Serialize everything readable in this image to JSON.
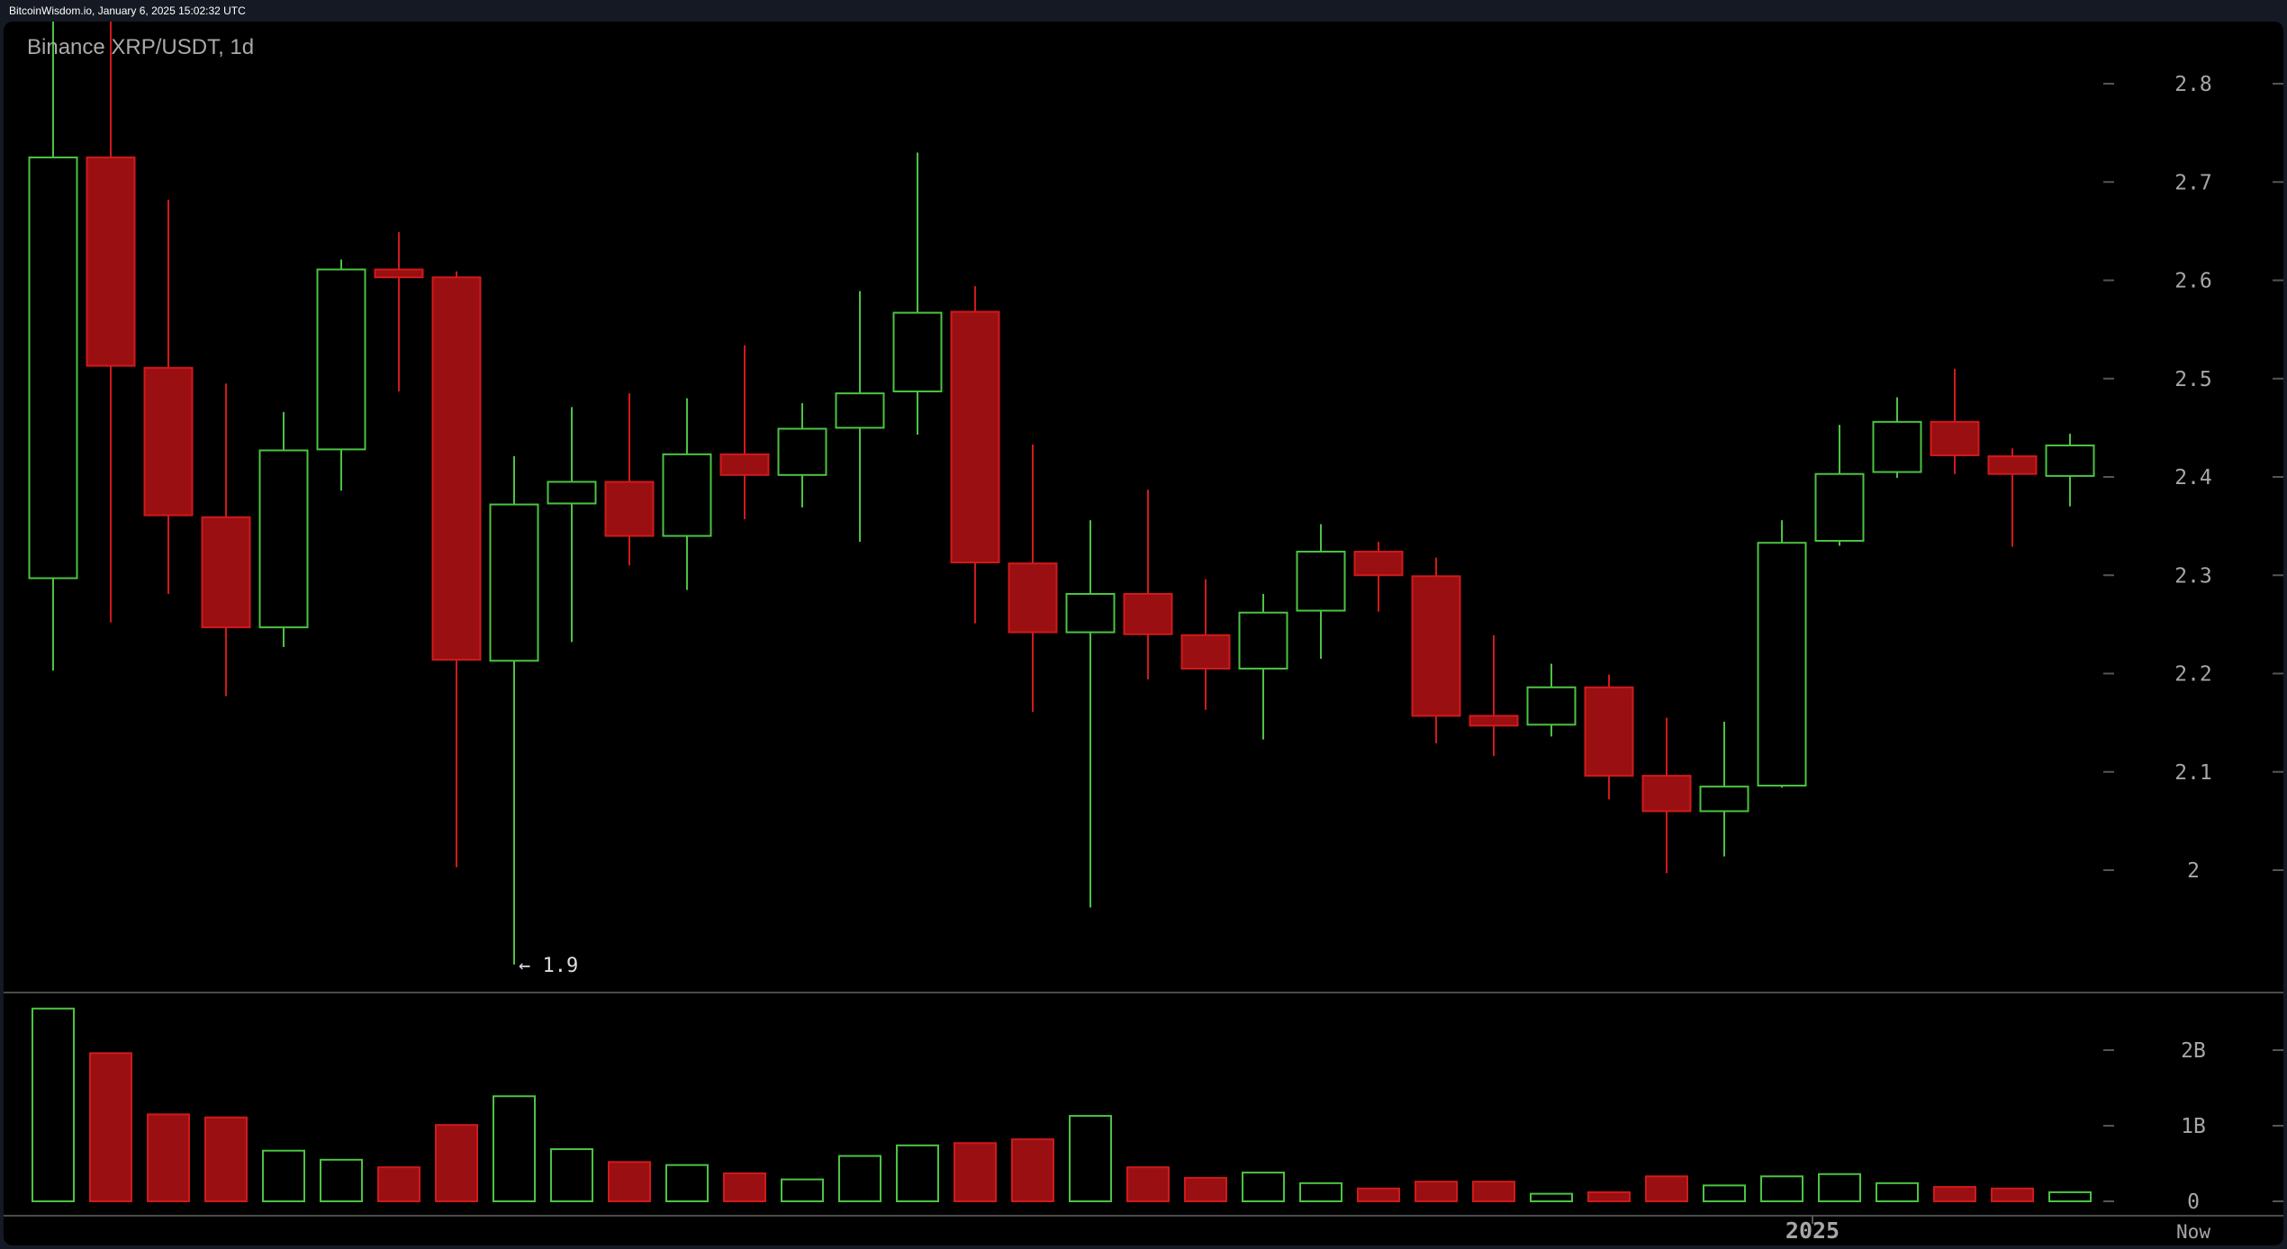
{
  "header": {
    "timestamp": "BitcoinWisdom.io, January 6, 2025 15:02:32 UTC"
  },
  "chart": {
    "title": "Binance XRP/USDT, 1d",
    "low_marker": "← 1.9",
    "colors": {
      "up": "#4cc342",
      "down_fill": "#9a0f12",
      "down_stroke": "#d01a1a",
      "axis_text": "#a6a6a6",
      "grid_line": "#4a4a4a",
      "background": "#000000",
      "frame": "#151923"
    }
  },
  "chart_data": {
    "type": "candlestick",
    "title": "Binance XRP/USDT, 1d",
    "xlabel": "",
    "ylabel": "",
    "price_ticks": [
      "2",
      "2.1",
      "2.2",
      "2.3",
      "2.4",
      "2.5",
      "2.6",
      "2.7",
      "2.8"
    ],
    "volume_ticks": [
      "0",
      "1B",
      "2B"
    ],
    "x_labels": [
      {
        "label": "2025",
        "candle_index": 30.5
      },
      {
        "label": "Now",
        "candle_index": 37
      }
    ],
    "annotations": [
      {
        "text": "← 1.9",
        "candle_index": 8,
        "price": 1.904
      }
    ],
    "ylim": [
      1.88,
      2.87
    ],
    "volume_ylim": [
      0,
      2.6
    ],
    "volume_unit": "B",
    "candles": [
      {
        "o": 2.297,
        "h": 2.9,
        "l": 2.203,
        "c": 2.725,
        "v": 2.55
      },
      {
        "o": 2.725,
        "h": 2.9,
        "l": 2.252,
        "c": 2.513,
        "v": 1.96
      },
      {
        "o": 2.511,
        "h": 2.682,
        "l": 2.281,
        "c": 2.361,
        "v": 1.15
      },
      {
        "o": 2.359,
        "h": 2.495,
        "l": 2.177,
        "c": 2.247,
        "v": 1.11
      },
      {
        "o": 2.247,
        "h": 2.466,
        "l": 2.227,
        "c": 2.427,
        "v": 0.67
      },
      {
        "o": 2.428,
        "h": 2.621,
        "l": 2.386,
        "c": 2.611,
        "v": 0.55
      },
      {
        "o": 2.611,
        "h": 2.649,
        "l": 2.487,
        "c": 2.603,
        "v": 0.45
      },
      {
        "o": 2.603,
        "h": 2.609,
        "l": 2.003,
        "c": 2.214,
        "v": 1.01
      },
      {
        "o": 2.213,
        "h": 2.421,
        "l": 1.904,
        "c": 2.372,
        "v": 1.39
      },
      {
        "o": 2.373,
        "h": 2.471,
        "l": 2.232,
        "c": 2.395,
        "v": 0.69
      },
      {
        "o": 2.395,
        "h": 2.485,
        "l": 2.31,
        "c": 2.34,
        "v": 0.52
      },
      {
        "o": 2.34,
        "h": 2.48,
        "l": 2.285,
        "c": 2.423,
        "v": 0.48
      },
      {
        "o": 2.423,
        "h": 2.534,
        "l": 2.357,
        "c": 2.402,
        "v": 0.37
      },
      {
        "o": 2.402,
        "h": 2.475,
        "l": 2.369,
        "c": 2.449,
        "v": 0.29
      },
      {
        "o": 2.45,
        "h": 2.589,
        "l": 2.334,
        "c": 2.485,
        "v": 0.6
      },
      {
        "o": 2.487,
        "h": 2.73,
        "l": 2.443,
        "c": 2.567,
        "v": 0.74
      },
      {
        "o": 2.568,
        "h": 2.594,
        "l": 2.251,
        "c": 2.313,
        "v": 0.77
      },
      {
        "o": 2.312,
        "h": 2.433,
        "l": 2.161,
        "c": 2.242,
        "v": 0.82
      },
      {
        "o": 2.242,
        "h": 2.356,
        "l": 1.962,
        "c": 2.281,
        "v": 1.13
      },
      {
        "o": 2.281,
        "h": 2.387,
        "l": 2.194,
        "c": 2.24,
        "v": 0.45
      },
      {
        "o": 2.239,
        "h": 2.296,
        "l": 2.163,
        "c": 2.205,
        "v": 0.31
      },
      {
        "o": 2.205,
        "h": 2.281,
        "l": 2.133,
        "c": 2.262,
        "v": 0.38
      },
      {
        "o": 2.264,
        "h": 2.352,
        "l": 2.215,
        "c": 2.324,
        "v": 0.24
      },
      {
        "o": 2.324,
        "h": 2.334,
        "l": 2.263,
        "c": 2.3,
        "v": 0.17
      },
      {
        "o": 2.299,
        "h": 2.318,
        "l": 2.129,
        "c": 2.157,
        "v": 0.26
      },
      {
        "o": 2.157,
        "h": 2.239,
        "l": 2.116,
        "c": 2.147,
        "v": 0.26
      },
      {
        "o": 2.148,
        "h": 2.21,
        "l": 2.136,
        "c": 2.186,
        "v": 0.1
      },
      {
        "o": 2.186,
        "h": 2.199,
        "l": 2.072,
        "c": 2.096,
        "v": 0.12
      },
      {
        "o": 2.096,
        "h": 2.155,
        "l": 1.997,
        "c": 2.06,
        "v": 0.33
      },
      {
        "o": 2.06,
        "h": 2.151,
        "l": 2.014,
        "c": 2.085,
        "v": 0.21
      },
      {
        "o": 2.086,
        "h": 2.356,
        "l": 2.084,
        "c": 2.333,
        "v": 0.33
      },
      {
        "o": 2.335,
        "h": 2.453,
        "l": 2.33,
        "c": 2.403,
        "v": 0.36
      },
      {
        "o": 2.405,
        "h": 2.481,
        "l": 2.399,
        "c": 2.456,
        "v": 0.24
      },
      {
        "o": 2.456,
        "h": 2.51,
        "l": 2.403,
        "c": 2.422,
        "v": 0.19
      },
      {
        "o": 2.421,
        "h": 2.429,
        "l": 2.329,
        "c": 2.403,
        "v": 0.17
      },
      {
        "o": 2.401,
        "h": 2.444,
        "l": 2.37,
        "c": 2.432,
        "v": 0.12
      }
    ]
  }
}
